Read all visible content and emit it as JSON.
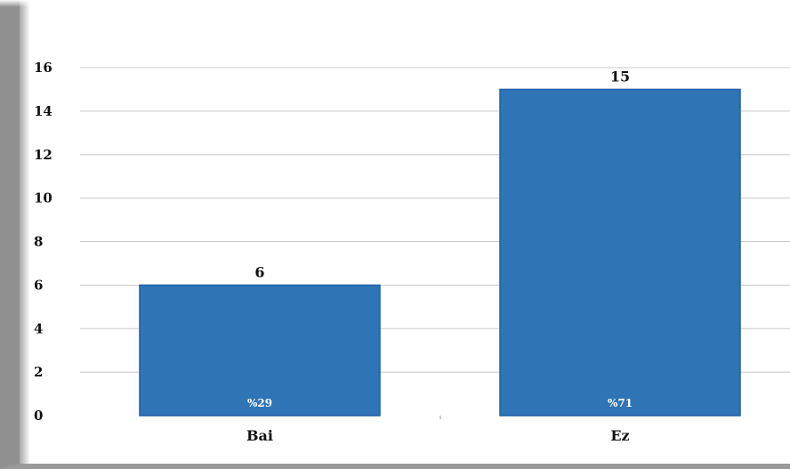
{
  "chart_data": {
    "type": "bar",
    "categories": [
      "Bai",
      "Ez"
    ],
    "values": [
      6,
      15
    ],
    "data_labels": [
      "6",
      "15"
    ],
    "percent_labels": [
      "%29",
      "%71"
    ],
    "ylim": [
      0,
      16
    ],
    "yticks": [
      0,
      2,
      4,
      6,
      8,
      10,
      12,
      14,
      16
    ],
    "title": "",
    "xlabel": "",
    "ylabel": "",
    "grid": true,
    "bar_color": "#2f75b5",
    "bar_edge_color": "#1f5fa8"
  }
}
